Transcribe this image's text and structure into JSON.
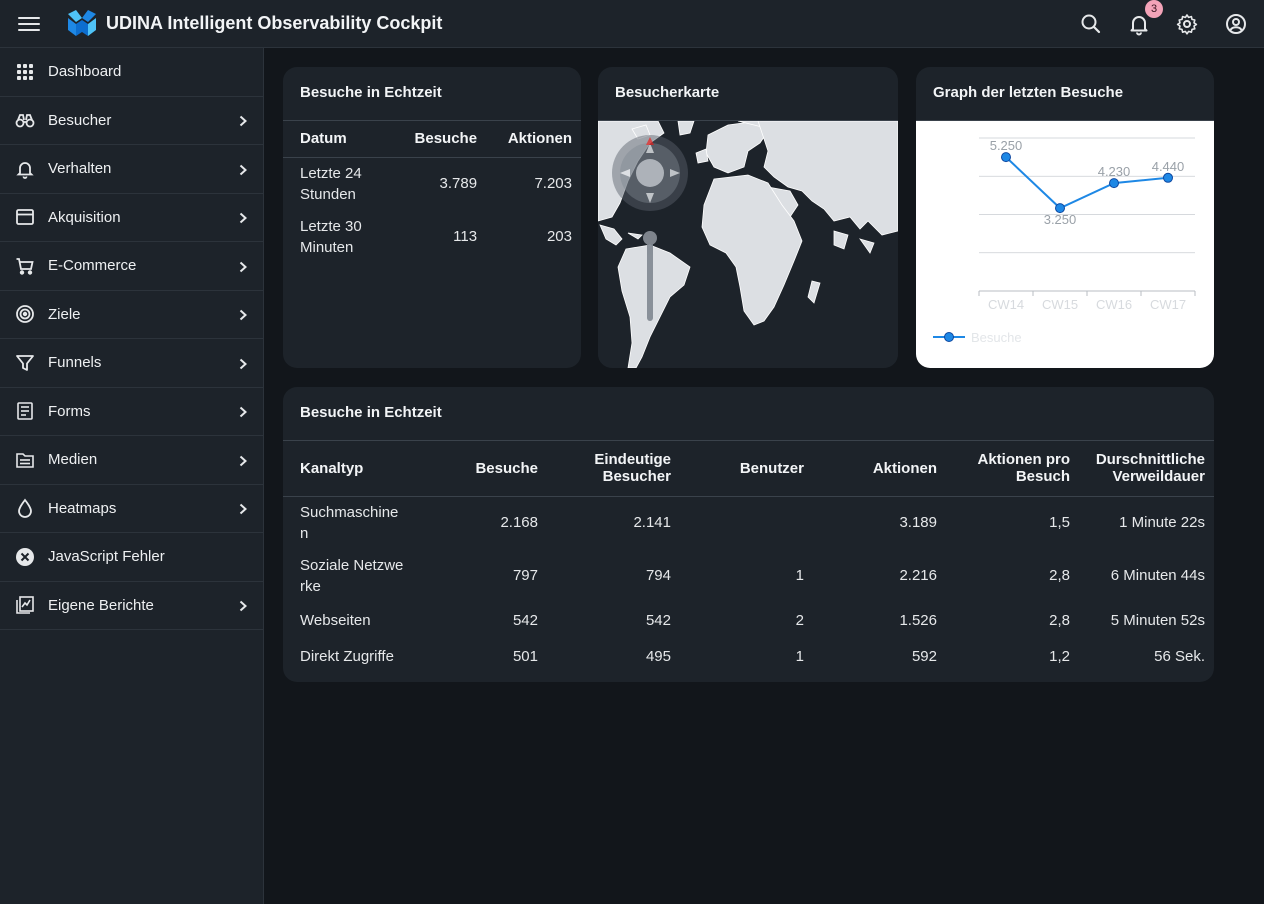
{
  "app": {
    "title": "UDINA Intelligent Observability Cockpit",
    "notification_count": "3",
    "icons": [
      "menu-icon",
      "search-icon",
      "bell-icon",
      "gear-icon",
      "user-icon"
    ]
  },
  "sidebar": {
    "items": [
      {
        "label": "Dashboard",
        "icon": "grid-icon",
        "chevron": false
      },
      {
        "label": "Besucher",
        "icon": "binoculars-icon",
        "chevron": true
      },
      {
        "label": "Verhalten",
        "icon": "bell-icon",
        "chevron": true
      },
      {
        "label": "Akquisition",
        "icon": "window-icon",
        "chevron": true
      },
      {
        "label": "E-Commerce",
        "icon": "cart-icon",
        "chevron": true
      },
      {
        "label": "Ziele",
        "icon": "target-icon",
        "chevron": true
      },
      {
        "label": "Funnels",
        "icon": "funnel-icon",
        "chevron": true
      },
      {
        "label": "Forms",
        "icon": "form-icon",
        "chevron": true
      },
      {
        "label": "Medien",
        "icon": "media-icon",
        "chevron": true
      },
      {
        "label": "Heatmaps",
        "icon": "drop-icon",
        "chevron": true
      },
      {
        "label": "JavaScript Fehler",
        "icon": "error-icon",
        "chevron": false
      },
      {
        "label": "Eigene Berichte",
        "icon": "report-icon",
        "chevron": true
      }
    ]
  },
  "realtime_small": {
    "title": "Besuche in Echtzeit",
    "headers": [
      "Datum",
      "Besuche",
      "Aktionen"
    ],
    "rows": [
      [
        "Letzte 24 Stunden",
        "3.789",
        "7.203"
      ],
      [
        "Letzte 30 Minuten",
        "113",
        "203"
      ]
    ]
  },
  "map_card": {
    "title": "Besucherkarte"
  },
  "graph_card": {
    "title": "Graph der letzten Besuche",
    "legend": "Besuche",
    "colors": {
      "line": "#1e88e5"
    }
  },
  "chart_data": {
    "type": "line",
    "x": [
      "CW14",
      "CW15",
      "CW16",
      "CW17"
    ],
    "series": [
      {
        "name": "Besuche",
        "values": [
          5250,
          3250,
          4230,
          4440
        ]
      }
    ],
    "data_labels": [
      "5.250",
      "3.250",
      "4.230",
      "4.440"
    ],
    "ylim": [
      0,
      6000
    ],
    "grid": true,
    "legend": "bottom-left"
  },
  "channels": {
    "title": "Besuche in Echtzeit",
    "headers": [
      "Kanaltyp",
      "Besuche",
      "Eindeutige Besucher",
      "Benutzer",
      "Aktionen",
      "Aktionen pro Besuch",
      "Durschnittliche Verweildauer"
    ],
    "rows": [
      [
        "Suchmaschinen",
        "2.168",
        "2.141",
        "",
        "3.189",
        "1,5",
        "1 Minute 22s"
      ],
      [
        "Soziale Netzwerke",
        "797",
        "794",
        "1",
        "2.216",
        "2,8",
        "6 Minuten 44s"
      ],
      [
        "Webseiten",
        "542",
        "542",
        "2",
        "1.526",
        "2,8",
        "5 Minuten 52s"
      ],
      [
        "Direkt Zugriffe",
        "501",
        "495",
        "1",
        "592",
        "1,2",
        "56 Sek."
      ]
    ]
  }
}
